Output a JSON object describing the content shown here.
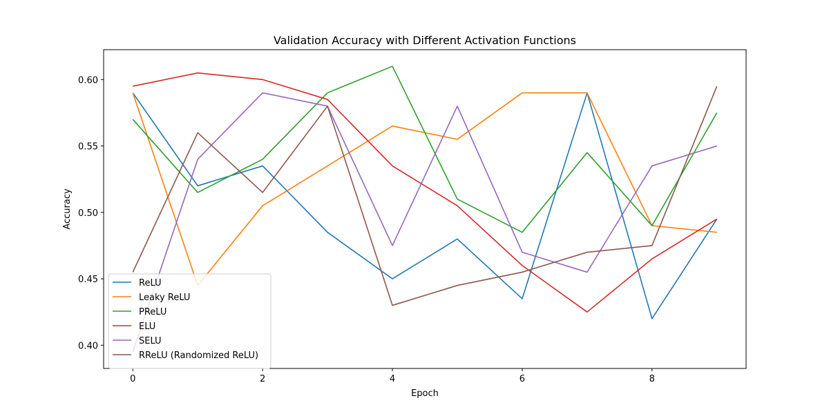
{
  "chart_data": {
    "type": "line",
    "title": "Validation Accuracy with Different Activation Functions",
    "xlabel": "Epoch",
    "ylabel": "Accuracy",
    "x": [
      0,
      1,
      2,
      3,
      4,
      5,
      6,
      7,
      8,
      9
    ],
    "xlim": [
      -0.45,
      9.45
    ],
    "ylim": [
      0.3825,
      0.6225
    ],
    "xticks": [
      0,
      2,
      4,
      6,
      8
    ],
    "xtick_labels": [
      "0",
      "2",
      "4",
      "6",
      "8"
    ],
    "yticks": [
      0.4,
      0.45,
      0.5,
      0.55,
      0.6
    ],
    "ytick_labels": [
      "0.40",
      "0.45",
      "0.50",
      "0.55",
      "0.60"
    ],
    "grid": false,
    "legend_position": "lower-left",
    "series": [
      {
        "name": "ReLU",
        "color": "#1f77b4",
        "values": [
          0.59,
          0.52,
          0.535,
          0.485,
          0.45,
          0.48,
          0.435,
          0.59,
          0.42,
          0.495
        ]
      },
      {
        "name": "Leaky ReLU",
        "color": "#ff7f0e",
        "values": [
          0.59,
          0.445,
          0.505,
          0.535,
          0.565,
          0.555,
          0.59,
          0.59,
          0.49,
          0.485
        ]
      },
      {
        "name": "PReLU",
        "color": "#2ca02c",
        "values": [
          0.57,
          0.515,
          0.54,
          0.59,
          0.61,
          0.51,
          0.485,
          0.545,
          0.49,
          0.575
        ]
      },
      {
        "name": "ELU",
        "color": "#d62728",
        "values": [
          0.595,
          0.605,
          0.6,
          0.585,
          0.535,
          0.505,
          0.46,
          0.425,
          0.465,
          0.495
        ]
      },
      {
        "name": "SELU",
        "color": "#9467bd",
        "values": [
          0.395,
          0.54,
          0.59,
          0.58,
          0.475,
          0.58,
          0.47,
          0.455,
          0.535,
          0.55
        ]
      },
      {
        "name": "RReLU (Randomized ReLU)",
        "color": "#8c564b",
        "values": [
          0.455,
          0.56,
          0.515,
          0.58,
          0.43,
          0.445,
          0.455,
          0.47,
          0.475,
          0.595
        ]
      }
    ]
  }
}
